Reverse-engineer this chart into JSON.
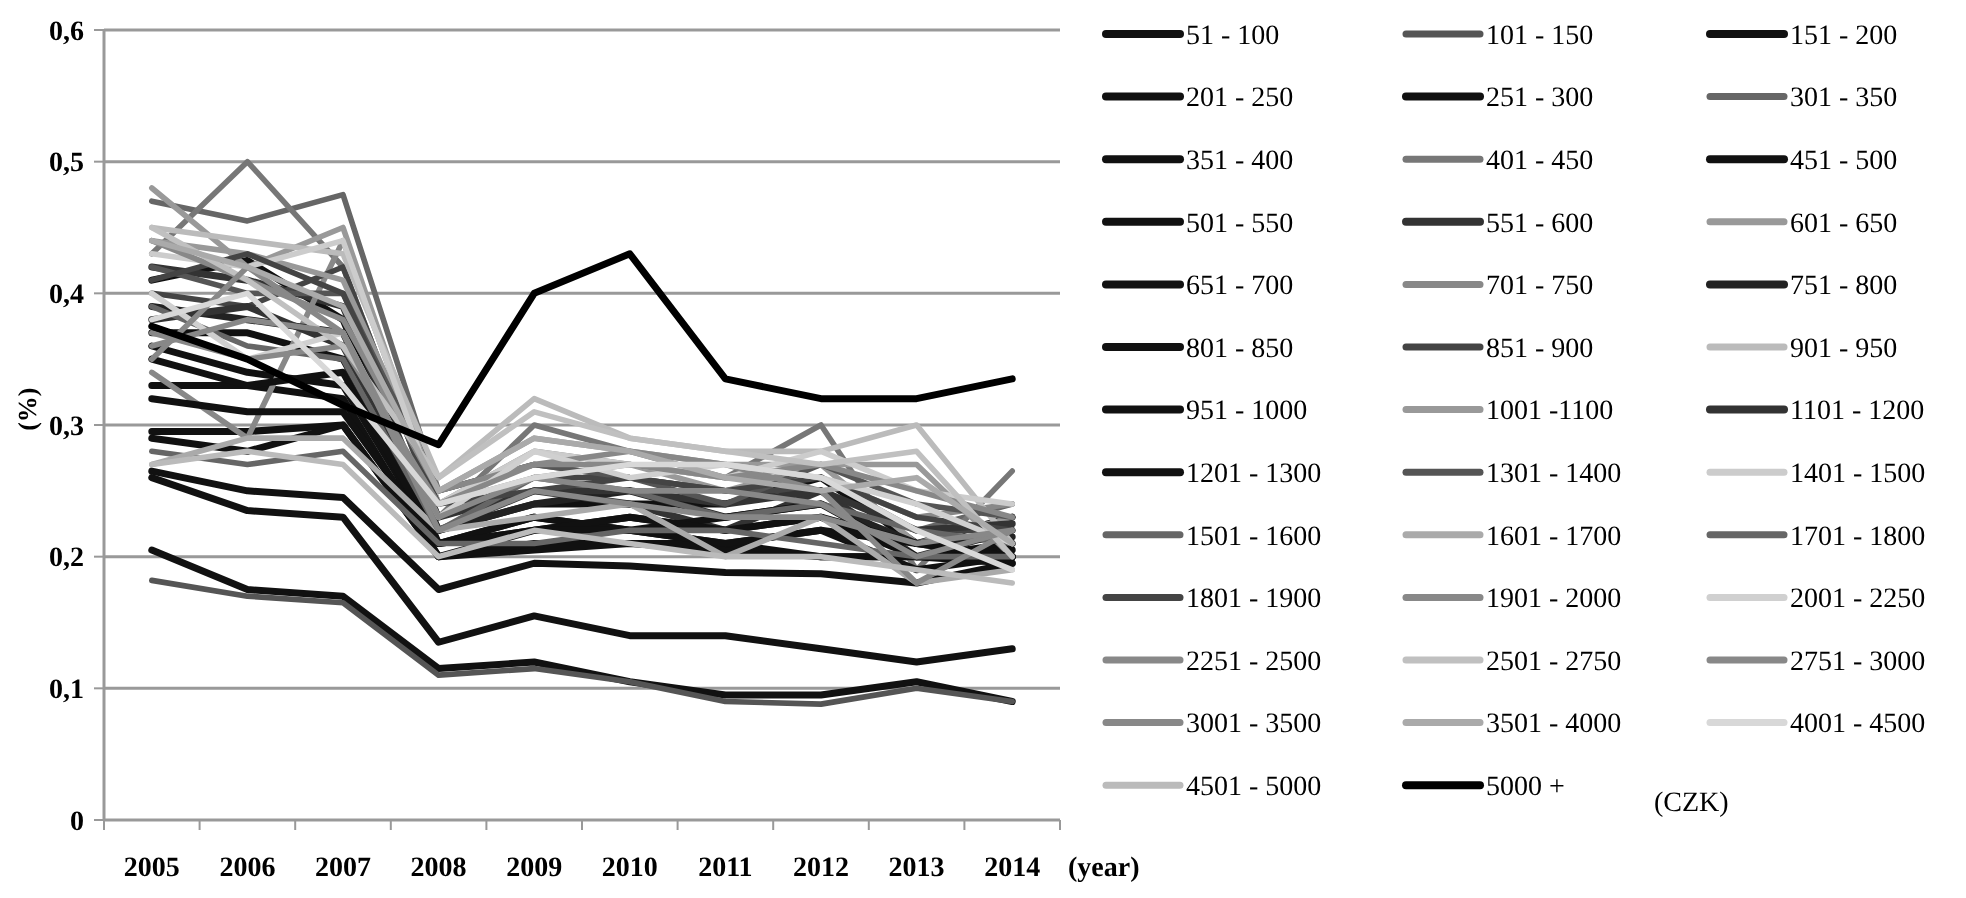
{
  "chart_data": {
    "type": "line",
    "xlabel": "(year)",
    "ylabel": "(%)",
    "legend_title": "(CZK)",
    "legend": "right",
    "grid": "y",
    "categories": [
      "2005",
      "2006",
      "2007",
      "2008",
      "2009",
      "2010",
      "2011",
      "2012",
      "2013",
      "2014"
    ],
    "ylim": [
      0,
      0.6
    ],
    "yticks": [
      0,
      {
        "value": 0.1,
        "label": "0,1"
      },
      {
        "value": 0.2,
        "label": "0,2"
      },
      {
        "value": 0.3,
        "label": "0,3"
      },
      {
        "value": 0.4,
        "label": "0,4"
      },
      {
        "value": 0.5,
        "label": "0,5"
      },
      {
        "value": 0.6,
        "label": "0,6"
      }
    ],
    "series": [
      {
        "name": "51 - 100",
        "color": "#111111",
        "values": [
          0.205,
          0.175,
          0.17,
          0.115,
          0.12,
          0.105,
          0.095,
          0.095,
          0.105,
          0.09
        ]
      },
      {
        "name": "101 - 150",
        "color": "#555555",
        "values": [
          0.182,
          0.17,
          0.165,
          0.11,
          0.115,
          0.105,
          0.09,
          0.088,
          0.1,
          0.09
        ]
      },
      {
        "name": "151 - 200",
        "color": "#111111",
        "values": [
          0.26,
          0.235,
          0.23,
          0.135,
          0.155,
          0.14,
          0.14,
          0.13,
          0.12,
          0.13
        ]
      },
      {
        "name": "201 - 250",
        "color": "#111111",
        "values": [
          0.265,
          0.25,
          0.245,
          0.175,
          0.195,
          0.193,
          0.188,
          0.187,
          0.18,
          0.195
        ]
      },
      {
        "name": "251 - 300",
        "color": "#111111",
        "values": [
          0.295,
          0.295,
          0.3,
          0.2,
          0.205,
          0.21,
          0.205,
          0.2,
          0.2,
          0.2
        ]
      },
      {
        "name": "301 - 350",
        "color": "#666666",
        "values": [
          0.47,
          0.455,
          0.475,
          0.25,
          0.27,
          0.26,
          0.25,
          0.26,
          0.22,
          0.24
        ]
      },
      {
        "name": "351 - 400",
        "color": "#111111",
        "values": [
          0.36,
          0.34,
          0.33,
          0.21,
          0.22,
          0.23,
          0.22,
          0.23,
          0.2,
          0.21
        ]
      },
      {
        "name": "401 - 450",
        "color": "#777777",
        "values": [
          0.43,
          0.5,
          0.42,
          0.23,
          0.3,
          0.28,
          0.26,
          0.3,
          0.19,
          0.265
        ]
      },
      {
        "name": "451 - 500",
        "color": "#111111",
        "values": [
          0.41,
          0.425,
          0.38,
          0.21,
          0.23,
          0.22,
          0.21,
          0.22,
          0.19,
          0.2
        ]
      },
      {
        "name": "501 - 550",
        "color": "#111111",
        "values": [
          0.37,
          0.37,
          0.35,
          0.22,
          0.24,
          0.24,
          0.24,
          0.26,
          0.21,
          0.23
        ]
      },
      {
        "name": "551 - 600",
        "color": "#333333",
        "values": [
          0.42,
          0.41,
          0.39,
          0.22,
          0.25,
          0.24,
          0.22,
          0.25,
          0.2,
          0.22
        ]
      },
      {
        "name": "601 - 650",
        "color": "#999999",
        "values": [
          0.48,
          0.42,
          0.45,
          0.24,
          0.26,
          0.27,
          0.25,
          0.27,
          0.21,
          0.23
        ]
      },
      {
        "name": "651 - 700",
        "color": "#111111",
        "values": [
          0.33,
          0.33,
          0.32,
          0.2,
          0.21,
          0.21,
          0.21,
          0.2,
          0.2,
          0.195
        ]
      },
      {
        "name": "701 - 750",
        "color": "#888888",
        "values": [
          0.34,
          0.29,
          0.44,
          0.24,
          0.28,
          0.27,
          0.26,
          0.26,
          0.23,
          0.24
        ]
      },
      {
        "name": "751 - 800",
        "color": "#222222",
        "values": [
          0.39,
          0.38,
          0.37,
          0.22,
          0.24,
          0.25,
          0.23,
          0.24,
          0.21,
          0.215
        ]
      },
      {
        "name": "801 - 850",
        "color": "#111111",
        "values": [
          0.35,
          0.33,
          0.34,
          0.21,
          0.23,
          0.22,
          0.23,
          0.24,
          0.2,
          0.205
        ]
      },
      {
        "name": "851 - 900",
        "color": "#444444",
        "values": [
          0.4,
          0.39,
          0.42,
          0.23,
          0.26,
          0.26,
          0.25,
          0.25,
          0.22,
          0.22
        ]
      },
      {
        "name": "901 - 950",
        "color": "#bbbbbb",
        "values": [
          0.45,
          0.44,
          0.43,
          0.26,
          0.32,
          0.29,
          0.28,
          0.28,
          0.3,
          0.21
        ]
      },
      {
        "name": "951 - 1000",
        "color": "#111111",
        "values": [
          0.32,
          0.31,
          0.31,
          0.21,
          0.22,
          0.23,
          0.22,
          0.23,
          0.21,
          0.2
        ]
      },
      {
        "name": "1001 -1100",
        "color": "#999999",
        "values": [
          0.44,
          0.43,
          0.41,
          0.25,
          0.29,
          0.28,
          0.27,
          0.27,
          0.27,
          0.2
        ]
      },
      {
        "name": "1101 - 1200",
        "color": "#333333",
        "values": [
          0.38,
          0.39,
          0.36,
          0.23,
          0.25,
          0.25,
          0.24,
          0.25,
          0.22,
          0.225
        ]
      },
      {
        "name": "1201 - 1300",
        "color": "#111111",
        "values": [
          0.29,
          0.28,
          0.3,
          0.2,
          0.22,
          0.22,
          0.21,
          0.22,
          0.21,
          0.2
        ]
      },
      {
        "name": "1301 - 1400",
        "color": "#555555",
        "values": [
          0.42,
          0.4,
          0.4,
          0.25,
          0.27,
          0.26,
          0.24,
          0.27,
          0.24,
          0.23
        ]
      },
      {
        "name": "1401 - 1500",
        "color": "#cccccc",
        "values": [
          0.43,
          0.42,
          0.44,
          0.24,
          0.28,
          0.27,
          0.26,
          0.28,
          0.25,
          0.24
        ]
      },
      {
        "name": "1501 - 1600",
        "color": "#666666",
        "values": [
          0.28,
          0.27,
          0.28,
          0.21,
          0.21,
          0.22,
          0.22,
          0.21,
          0.2,
          0.2
        ]
      },
      {
        "name": "1601 - 1700",
        "color": "#aaaaaa",
        "values": [
          0.27,
          0.29,
          0.29,
          0.22,
          0.23,
          0.24,
          0.2,
          0.23,
          0.18,
          0.19
        ]
      },
      {
        "name": "1701 - 1800",
        "color": "#666666",
        "values": [
          0.39,
          0.36,
          0.35,
          0.22,
          0.26,
          0.25,
          0.23,
          0.24,
          0.22,
          0.21
        ]
      },
      {
        "name": "1801 - 1900",
        "color": "#444444",
        "values": [
          0.41,
          0.43,
          0.4,
          0.24,
          0.25,
          0.26,
          0.25,
          0.26,
          0.23,
          0.22
        ]
      },
      {
        "name": "1901 - 2000",
        "color": "#888888",
        "values": [
          0.44,
          0.41,
          0.38,
          0.25,
          0.27,
          0.28,
          0.27,
          0.25,
          0.18,
          0.22
        ]
      },
      {
        "name": "2001 - 2250",
        "color": "#d0d0d0",
        "values": [
          0.4,
          0.35,
          0.37,
          0.23,
          0.28,
          0.26,
          0.27,
          0.26,
          0.24,
          0.21
        ]
      },
      {
        "name": "2251 - 2500",
        "color": "#888888",
        "values": [
          0.37,
          0.35,
          0.36,
          0.24,
          0.27,
          0.27,
          0.26,
          0.27,
          0.25,
          0.23
        ]
      },
      {
        "name": "2501 - 2750",
        "color": "#c0c0c0",
        "values": [
          0.45,
          0.41,
          0.36,
          0.26,
          0.31,
          0.29,
          0.28,
          0.27,
          0.28,
          0.2
        ]
      },
      {
        "name": "2751 - 3000",
        "color": "#888888",
        "values": [
          0.36,
          0.38,
          0.37,
          0.23,
          0.26,
          0.25,
          0.25,
          0.24,
          0.2,
          0.22
        ]
      },
      {
        "name": "3001 - 3500",
        "color": "#888888",
        "values": [
          0.35,
          0.42,
          0.37,
          0.22,
          0.25,
          0.24,
          0.23,
          0.23,
          0.21,
          0.22
        ]
      },
      {
        "name": "3501 - 4000",
        "color": "#aaaaaa",
        "values": [
          0.44,
          0.42,
          0.39,
          0.25,
          0.29,
          0.28,
          0.26,
          0.25,
          0.26,
          0.21
        ]
      },
      {
        "name": "4001 - 4500",
        "color": "#d8d8d8",
        "values": [
          0.38,
          0.4,
          0.33,
          0.24,
          0.26,
          0.27,
          0.27,
          0.26,
          0.22,
          0.19
        ]
      },
      {
        "name": "4501 - 5000",
        "color": "#bbbbbb",
        "values": [
          0.27,
          0.28,
          0.27,
          0.2,
          0.22,
          0.21,
          0.2,
          0.2,
          0.19,
          0.18
        ]
      },
      {
        "name": "5000 +",
        "color": "#000000",
        "values": [
          0.375,
          0.35,
          0.315,
          0.285,
          0.4,
          0.43,
          0.335,
          0.32,
          0.32,
          0.335
        ]
      }
    ]
  }
}
